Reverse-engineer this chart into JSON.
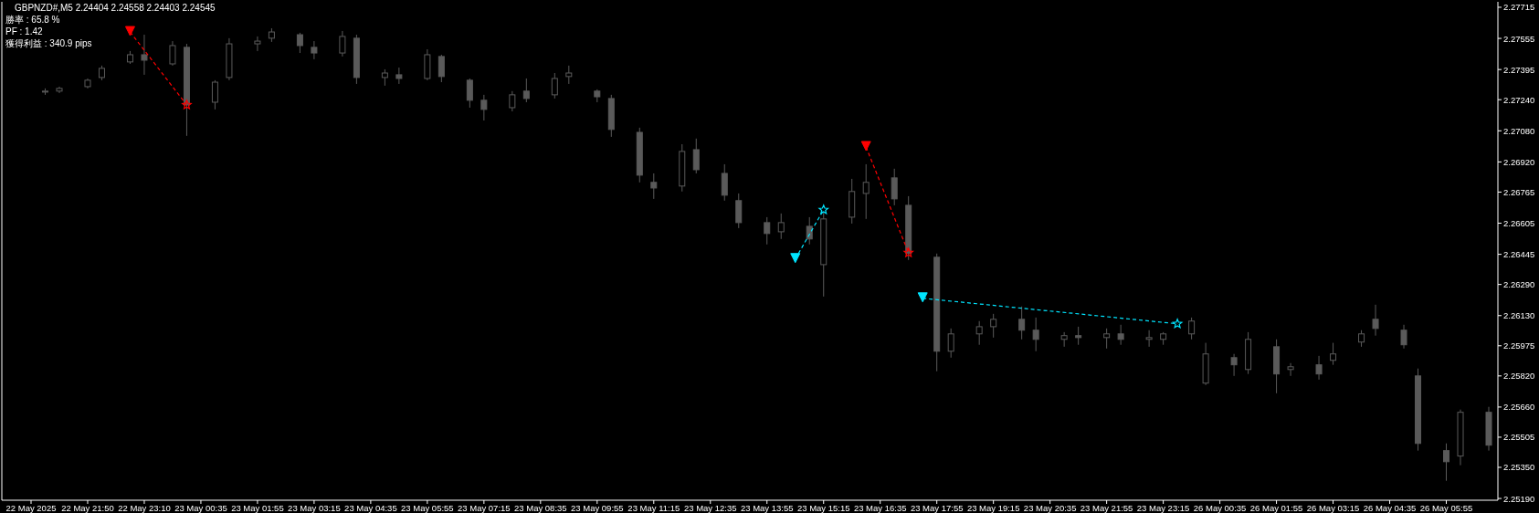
{
  "chart_data": {
    "type": "candlestick",
    "title": "GBPNZD#,M5  2.24404 2.24558 2.24403 2.24545",
    "annotations": [
      "勝率 : 65.8 %",
      "PF : 1.42",
      "獲得利益 : 340.9 pips"
    ],
    "color": "#5a5a5a",
    "categories": [
      "22 May 2025",
      null,
      null,
      null,
      "22 May 21:50",
      null,
      null,
      null,
      "22 May 23:10",
      null,
      null,
      null,
      "23 May 00:35",
      null,
      null,
      null,
      "23 May 01:55",
      null,
      null,
      null,
      "23 May 03:15",
      null,
      null,
      null,
      "23 May 04:35",
      null,
      null,
      null,
      "23 May 05:55",
      null,
      null,
      null,
      "23 May 07:15",
      null,
      null,
      null,
      "23 May 08:35",
      null,
      null,
      null,
      "23 May 09:55",
      null,
      null,
      null,
      "23 May 11:15",
      null,
      null,
      null,
      "23 May 12:35",
      null,
      null,
      null,
      "23 May 13:55",
      null,
      null,
      null,
      "23 May 15:15",
      null,
      null,
      null,
      "23 May 16:35",
      null,
      null,
      null,
      "23 May 17:55",
      null,
      null,
      null,
      "23 May 19:15",
      null,
      null,
      null,
      "23 May 20:35",
      null,
      null,
      null,
      "23 May 21:55",
      null,
      null,
      null,
      "23 May 23:15",
      null,
      null,
      null,
      "26 May 00:35",
      null,
      null,
      null,
      "26 May 01:55",
      null,
      null,
      null,
      "26 May 03:15",
      null,
      null,
      null,
      "26 May 04:35",
      null,
      null,
      null,
      "26 May 05:55",
      null,
      null,
      null
    ],
    "ohlc": [
      null,
      [
        2.27279,
        2.27298,
        2.27265,
        2.27284
      ],
      [
        2.27284,
        2.27307,
        2.27274,
        2.27298
      ],
      null,
      [
        2.27307,
        2.27349,
        2.27298,
        2.2734
      ],
      [
        2.27354,
        2.27415,
        2.2734,
        2.27401
      ],
      null,
      [
        2.27434,
        2.2749,
        2.27424,
        2.27471
      ],
      [
        2.27471,
        2.27574,
        2.27368,
        2.27443
      ],
      null,
      [
        2.27424,
        2.27541,
        2.27415,
        2.27518
      ],
      [
        2.27509,
        2.27527,
        2.27054,
        2.27213
      ],
      null,
      [
        2.27227,
        2.2734,
        2.2719,
        2.2733
      ],
      [
        2.27354,
        2.27556,
        2.2734,
        2.27527
      ],
      null,
      [
        2.27527,
        2.27565,
        2.2749,
        2.27541
      ],
      [
        2.27556,
        2.27607,
        2.27537,
        2.27588
      ],
      null,
      [
        2.27574,
        2.27584,
        2.2748,
        2.27518
      ],
      [
        2.27509,
        2.27541,
        2.27448,
        2.2748
      ],
      null,
      [
        2.2748,
        2.27593,
        2.27462,
        2.27565
      ],
      [
        2.27556,
        2.27574,
        2.27321,
        2.27354
      ],
      null,
      [
        2.27354,
        2.27396,
        2.27312,
        2.27377
      ],
      [
        2.27368,
        2.27405,
        2.27321,
        2.27349
      ],
      null,
      [
        2.27349,
        2.27499,
        2.2734,
        2.27471
      ],
      [
        2.27462,
        2.27471,
        2.2733,
        2.27359
      ],
      null,
      [
        2.2734,
        2.27349,
        2.27199,
        2.27237
      ],
      [
        2.27237,
        2.27265,
        2.27133,
        2.2719
      ],
      null,
      [
        2.27199,
        2.27284,
        2.2718,
        2.27265
      ],
      [
        2.27284,
        2.27349,
        2.27227,
        2.27246
      ],
      null,
      [
        2.27265,
        2.27377,
        2.27246,
        2.27349
      ],
      [
        2.27359,
        2.27415,
        2.27321,
        2.27377
      ],
      null,
      [
        2.27284,
        2.27293,
        2.27227,
        2.27255
      ],
      [
        2.27246,
        2.27265,
        2.27049,
        2.27087
      ],
      null,
      [
        2.27072,
        2.27096,
        2.26815,
        2.26852
      ],
      [
        2.26815,
        2.26861,
        2.2673,
        2.26786
      ],
      null,
      [
        2.26796,
        2.27011,
        2.26768,
        2.26974
      ],
      [
        2.26983,
        2.2704,
        2.26861,
        2.2688
      ],
      null,
      [
        2.26861,
        2.26908,
        2.26721,
        2.26749
      ],
      [
        2.26721,
        2.26758,
        2.2658,
        2.26608
      ],
      null,
      [
        2.26608,
        2.26636,
        2.26496,
        2.26552
      ],
      [
        2.26561,
        2.26655,
        2.26524,
        2.26608
      ],
      null,
      [
        2.26589,
        2.26636,
        2.26496,
        2.26524
      ],
      [
        2.26392,
        2.26664,
        2.26228,
        2.26627
      ],
      null,
      [
        2.26636,
        2.26833,
        2.26603,
        2.26768
      ],
      [
        2.26758,
        2.26908,
        2.26627,
        2.26815
      ],
      null,
      [
        2.26838,
        2.26885,
        2.26697,
        2.2673
      ],
      [
        2.26697,
        2.26744,
        2.26416,
        2.26449
      ],
      null,
      [
        2.2643,
        2.26449,
        2.25844,
        2.25947
      ],
      [
        2.25947,
        2.26064,
        2.25914,
        2.26036
      ],
      null,
      [
        2.26036,
        2.26102,
        2.2598,
        2.26073
      ],
      [
        2.26073,
        2.26139,
        2.26017,
        2.26111
      ],
      null,
      [
        2.26111,
        2.26177,
        2.26008,
        2.26055
      ],
      [
        2.26055,
        2.2612,
        2.25947,
        2.26008
      ],
      null,
      [
        2.26008,
        2.26045,
        2.2597,
        2.26027
      ],
      [
        2.26027,
        2.26073,
        2.2598,
        2.26017
      ],
      null,
      [
        2.26017,
        2.26064,
        2.25961,
        2.26036
      ],
      [
        2.26036,
        2.26083,
        2.2598,
        2.26008
      ],
      null,
      [
        2.26008,
        2.26055,
        2.2597,
        2.26017
      ],
      [
        2.26008,
        2.26045,
        2.2598,
        2.26036
      ],
      null,
      [
        2.26036,
        2.2612,
        2.26008,
        2.26102
      ],
      [
        2.25783,
        2.2599,
        2.25773,
        2.25933
      ],
      null,
      [
        2.25914,
        2.25933,
        2.2582,
        2.25877
      ],
      [
        2.25853,
        2.26045,
        2.2583,
        2.26008
      ],
      null,
      [
        2.2597,
        2.26008,
        2.25731,
        2.2583
      ],
      [
        2.25853,
        2.25886,
        2.2582,
        2.25867
      ],
      null,
      [
        2.25877,
        2.25923,
        2.25801,
        2.2583
      ],
      [
        2.259,
        2.2599,
        2.25877,
        2.25933
      ],
      null,
      [
        2.25994,
        2.26055,
        2.2597,
        2.26036
      ],
      [
        2.26111,
        2.26186,
        2.26027,
        2.26064
      ],
      null,
      [
        2.26055,
        2.26083,
        2.25961,
        2.2598
      ],
      [
        2.2582,
        2.25858,
        2.25436,
        2.25473
      ],
      null,
      [
        2.25436,
        2.25473,
        2.25281,
        2.25379
      ],
      [
        2.25408,
        2.25647,
        2.25361,
        2.25633
      ],
      null,
      [
        2.25633,
        2.25661,
        2.25436,
        2.25464
      ]
    ],
    "series": [
      {
        "type": "line",
        "color": "#ff0000",
        "line_style": "dashed",
        "values": [
          null,
          null,
          null,
          null,
          null,
          null,
          null,
          2.27588,
          null,
          null,
          null,
          2.27213,
          null,
          null,
          null,
          null,
          null,
          null,
          null,
          null,
          null,
          null,
          null,
          null,
          null,
          null,
          null,
          null,
          null,
          null,
          null,
          null,
          null,
          null,
          null,
          null,
          null,
          null,
          null,
          null,
          null,
          null,
          null,
          null,
          null,
          null,
          null,
          null,
          null,
          null,
          null,
          null,
          null,
          null,
          null,
          null,
          null,
          null,
          null,
          null,
          null,
          null,
          null,
          null,
          null,
          null,
          null,
          null,
          null,
          null,
          null,
          null,
          null,
          null,
          null,
          null,
          null,
          null,
          null,
          null,
          null,
          null,
          null,
          null,
          null,
          null,
          null,
          null,
          null,
          null,
          null,
          null,
          null,
          null,
          null,
          null,
          null,
          null,
          null,
          null,
          null,
          null,
          null,
          null
        ]
      },
      {
        "type": "line",
        "color": "#00e5ff",
        "line_style": "dashed",
        "values": [
          null,
          null,
          null,
          null,
          null,
          null,
          null,
          null,
          null,
          null,
          null,
          null,
          null,
          null,
          null,
          null,
          null,
          null,
          null,
          null,
          null,
          null,
          null,
          null,
          null,
          null,
          null,
          null,
          null,
          null,
          null,
          null,
          null,
          null,
          null,
          null,
          null,
          null,
          null,
          null,
          null,
          null,
          null,
          null,
          null,
          null,
          null,
          null,
          null,
          null,
          null,
          null,
          null,
          null,
          2.26421,
          null,
          2.26674,
          null,
          null,
          null,
          null,
          null,
          null,
          null,
          null,
          null,
          null,
          null,
          null,
          null,
          null,
          null,
          null,
          null,
          null,
          null,
          null,
          null,
          null,
          null,
          null,
          null,
          null,
          null,
          null,
          null,
          null,
          null,
          null,
          null,
          null,
          null,
          null,
          null,
          null,
          null,
          null,
          null,
          null,
          null,
          null,
          null,
          null,
          null
        ]
      },
      {
        "type": "line",
        "color": "#ff0000",
        "line_style": "dashed",
        "values": [
          null,
          null,
          null,
          null,
          null,
          null,
          null,
          null,
          null,
          null,
          null,
          null,
          null,
          null,
          null,
          null,
          null,
          null,
          null,
          null,
          null,
          null,
          null,
          null,
          null,
          null,
          null,
          null,
          null,
          null,
          null,
          null,
          null,
          null,
          null,
          null,
          null,
          null,
          null,
          null,
          null,
          null,
          null,
          null,
          null,
          null,
          null,
          null,
          null,
          null,
          null,
          null,
          null,
          null,
          null,
          null,
          null,
          null,
          null,
          2.26997,
          null,
          null,
          2.26453,
          null,
          null,
          null,
          null,
          null,
          null,
          null,
          null,
          null,
          null,
          null,
          null,
          null,
          null,
          null,
          null,
          null,
          null,
          null,
          null,
          null,
          null,
          null,
          null,
          null,
          null,
          null,
          null,
          null,
          null,
          null,
          null,
          null,
          null,
          null,
          null,
          null,
          null,
          null,
          null,
          null
        ]
      },
      {
        "type": "line",
        "color": "#00e5ff",
        "line_style": "dashed",
        "values": [
          null,
          null,
          null,
          null,
          null,
          null,
          null,
          null,
          null,
          null,
          null,
          null,
          null,
          null,
          null,
          null,
          null,
          null,
          null,
          null,
          null,
          null,
          null,
          null,
          null,
          null,
          null,
          null,
          null,
          null,
          null,
          null,
          null,
          null,
          null,
          null,
          null,
          null,
          null,
          null,
          null,
          null,
          null,
          null,
          null,
          null,
          null,
          null,
          null,
          null,
          null,
          null,
          null,
          null,
          null,
          null,
          null,
          null,
          null,
          null,
          null,
          null,
          null,
          2.26219,
          null,
          null,
          null,
          null,
          null,
          null,
          null,
          null,
          null,
          null,
          null,
          null,
          null,
          null,
          null,
          null,
          null,
          2.26088,
          null,
          null,
          null,
          null,
          null,
          null,
          null,
          null,
          null,
          null,
          null,
          null,
          null,
          null,
          null,
          null,
          null,
          null,
          null,
          null,
          null,
          null
        ]
      },
      {
        "type": "scatter",
        "marker": "triangle",
        "color": "#ff0000",
        "values": [
          null,
          null,
          null,
          null,
          null,
          null,
          null,
          2.27588,
          null,
          null,
          null,
          null,
          null,
          null,
          null,
          null,
          null,
          null,
          null,
          null,
          null,
          null,
          null,
          null,
          null,
          null,
          null,
          null,
          null,
          null,
          null,
          null,
          null,
          null,
          null,
          null,
          null,
          null,
          null,
          null,
          null,
          null,
          null,
          null,
          null,
          null,
          null,
          null,
          null,
          null,
          null,
          null,
          null,
          null,
          null,
          null,
          null,
          null,
          null,
          2.26997,
          null,
          null,
          null,
          null,
          null,
          null,
          null,
          null,
          null,
          null,
          null,
          null,
          null,
          null,
          null,
          null,
          null,
          null,
          null,
          null,
          null,
          null,
          null,
          null,
          null,
          null,
          null,
          null,
          null,
          null,
          null,
          null,
          null,
          null,
          null,
          null,
          null,
          null,
          null,
          null,
          null,
          null,
          null,
          null
        ]
      },
      {
        "type": "scatter",
        "marker": "triangle",
        "color": "#00e5ff",
        "values": [
          null,
          null,
          null,
          null,
          null,
          null,
          null,
          null,
          null,
          null,
          null,
          null,
          null,
          null,
          null,
          null,
          null,
          null,
          null,
          null,
          null,
          null,
          null,
          null,
          null,
          null,
          null,
          null,
          null,
          null,
          null,
          null,
          null,
          null,
          null,
          null,
          null,
          null,
          null,
          null,
          null,
          null,
          null,
          null,
          null,
          null,
          null,
          null,
          null,
          null,
          null,
          null,
          null,
          null,
          2.26421,
          null,
          null,
          null,
          null,
          null,
          null,
          null,
          null,
          2.26219,
          null,
          null,
          null,
          null,
          null,
          null,
          null,
          null,
          null,
          null,
          null,
          null,
          null,
          null,
          null,
          null,
          null,
          null,
          null,
          null,
          null,
          null,
          null,
          null,
          null,
          null,
          null,
          null,
          null,
          null,
          null,
          null,
          null,
          null,
          null,
          null,
          null,
          null,
          null,
          null
        ]
      },
      {
        "type": "scatter",
        "marker": "star",
        "color": "#ff0000",
        "values": [
          null,
          null,
          null,
          null,
          null,
          null,
          null,
          null,
          null,
          null,
          null,
          2.27213,
          null,
          null,
          null,
          null,
          null,
          null,
          null,
          null,
          null,
          null,
          null,
          null,
          null,
          null,
          null,
          null,
          null,
          null,
          null,
          null,
          null,
          null,
          null,
          null,
          null,
          null,
          null,
          null,
          null,
          null,
          null,
          null,
          null,
          null,
          null,
          null,
          null,
          null,
          null,
          null,
          null,
          null,
          null,
          null,
          null,
          null,
          null,
          null,
          null,
          null,
          2.26453,
          null,
          null,
          null,
          null,
          null,
          null,
          null,
          null,
          null,
          null,
          null,
          null,
          null,
          null,
          null,
          null,
          null,
          null,
          null,
          null,
          null,
          null,
          null,
          null,
          null,
          null,
          null,
          null,
          null,
          null,
          null,
          null,
          null,
          null,
          null,
          null,
          null,
          null,
          null,
          null,
          null
        ]
      },
      {
        "type": "scatter",
        "marker": "star",
        "color": "#00e5ff",
        "values": [
          null,
          null,
          null,
          null,
          null,
          null,
          null,
          null,
          null,
          null,
          null,
          null,
          null,
          null,
          null,
          null,
          null,
          null,
          null,
          null,
          null,
          null,
          null,
          null,
          null,
          null,
          null,
          null,
          null,
          null,
          null,
          null,
          null,
          null,
          null,
          null,
          null,
          null,
          null,
          null,
          null,
          null,
          null,
          null,
          null,
          null,
          null,
          null,
          null,
          null,
          null,
          null,
          null,
          null,
          null,
          null,
          2.26674,
          null,
          null,
          null,
          null,
          null,
          null,
          null,
          null,
          null,
          null,
          null,
          null,
          null,
          null,
          null,
          null,
          null,
          null,
          null,
          null,
          null,
          null,
          null,
          null,
          2.26088,
          null,
          null,
          null,
          null,
          null,
          null,
          null,
          null,
          null,
          null,
          null,
          null,
          null,
          null,
          null,
          null,
          null,
          null,
          null,
          null,
          null,
          null
        ]
      }
    ],
    "ylim": [
      2.25181,
      2.27743
    ],
    "yticks": [
      {
        "value": 2.27715,
        "label": "2.27715"
      },
      {
        "value": 2.27555,
        "label": "2.27555"
      },
      {
        "value": 2.27395,
        "label": "2.27395"
      },
      {
        "value": 2.2724,
        "label": "2.27240"
      },
      {
        "value": 2.2708,
        "label": "2.27080"
      },
      {
        "value": 2.2692,
        "label": "2.26920"
      },
      {
        "value": 2.26765,
        "label": "2.26765"
      },
      {
        "value": 2.26605,
        "label": "2.26605"
      },
      {
        "value": 2.26445,
        "label": "2.26445"
      },
      {
        "value": 2.2629,
        "label": "2.26290"
      },
      {
        "value": 2.2613,
        "label": "2.26130"
      },
      {
        "value": 2.25975,
        "label": "2.25975"
      },
      {
        "value": 2.2582,
        "label": "2.25820"
      },
      {
        "value": 2.2566,
        "label": "2.25660"
      },
      {
        "value": 2.25505,
        "label": "2.25505"
      },
      {
        "value": 2.2535,
        "label": "2.25350"
      },
      {
        "value": 2.2519,
        "label": "2.25190"
      }
    ]
  }
}
